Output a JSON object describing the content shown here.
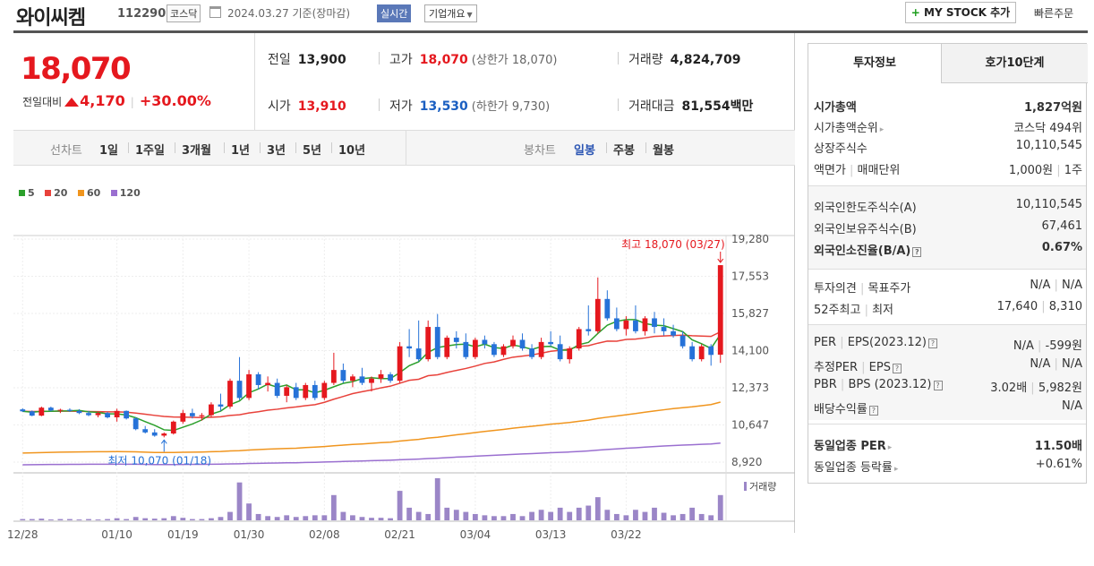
{
  "header": {
    "name": "와이씨켐",
    "code": "112290",
    "market": "코스닥",
    "date": "2024.03.27  기준(장마감)",
    "realtime": "실시간",
    "overview": "기업개요",
    "mystock": "MY STOCK 추가",
    "quick_order": "빠른주문"
  },
  "price": {
    "current": "18,070",
    "change_label": "전일대비",
    "change": "4,170",
    "change_pct": "+30.00%"
  },
  "stats": {
    "prev_label": "전일",
    "prev": "13,900",
    "high_label": "고가",
    "high": "18,070",
    "upper_limit": "(상한가 18,070)",
    "volume_label": "거래량",
    "volume": "4,824,709",
    "open_label": "시가",
    "open": "13,910",
    "low_label": "저가",
    "low": "13,530",
    "lower_limit": "(하한가 9,730)",
    "amount_label": "거래대금",
    "amount": "81,554",
    "amount_unit": "백만"
  },
  "line_tabs": {
    "label": "선차트",
    "items": [
      "1일",
      "1주일",
      "3개월",
      "1년",
      "3년",
      "5년",
      "10년"
    ]
  },
  "candle_tabs": {
    "label": "봉차트",
    "items": [
      "일봉",
      "주봉",
      "월봉"
    ],
    "selected": 0
  },
  "chart_data": {
    "type": "candlestick",
    "ma_legend": [
      {
        "name": "5",
        "color": "#2ca02c"
      },
      {
        "name": "20",
        "color": "#e8423b"
      },
      {
        "name": "60",
        "color": "#f0951e"
      },
      {
        "name": "120",
        "color": "#9a6fd0"
      }
    ],
    "y_ticks": [
      "19,280",
      "17,553",
      "15,827",
      "14,100",
      "12,373",
      "10,647",
      "8,920"
    ],
    "ylim": [
      8920,
      19280
    ],
    "x_labels": [
      "12/28",
      "01/10",
      "01/19",
      "01/30",
      "02/08",
      "02/21",
      "03/04",
      "03/13",
      "03/22"
    ],
    "max_label": "최고 18,070 (03/27)",
    "min_label": "최저 10,070 (01/18)",
    "volume_label": "거래량",
    "candles": [
      [
        11370,
        11420,
        11250,
        11280
      ],
      [
        11280,
        11320,
        11050,
        11080
      ],
      [
        11080,
        11500,
        11050,
        11450
      ],
      [
        11450,
        11500,
        11280,
        11320
      ],
      [
        11320,
        11400,
        11200,
        11350
      ],
      [
        11350,
        11420,
        11250,
        11300
      ],
      [
        11300,
        11380,
        11150,
        11200
      ],
      [
        11200,
        11300,
        11050,
        11100
      ],
      [
        11100,
        11250,
        11000,
        11200
      ],
      [
        11200,
        11250,
        10950,
        11000
      ],
      [
        11000,
        11400,
        10800,
        11300
      ],
      [
        11300,
        11320,
        10900,
        10950
      ],
      [
        10950,
        11000,
        10400,
        10450
      ],
      [
        10450,
        10600,
        10250,
        10300
      ],
      [
        10300,
        10450,
        10100,
        10150
      ],
      [
        10150,
        10300,
        10070,
        10250
      ],
      [
        10250,
        10850,
        10200,
        10800
      ],
      [
        10800,
        11350,
        10700,
        11200
      ],
      [
        11200,
        11400,
        10950,
        11050
      ],
      [
        11050,
        11200,
        10850,
        11100
      ],
      [
        11100,
        11700,
        11000,
        11600
      ],
      [
        11600,
        12100,
        11300,
        11500
      ],
      [
        11500,
        12800,
        11400,
        12700
      ],
      [
        12700,
        13800,
        11800,
        11900
      ],
      [
        11900,
        13200,
        11800,
        13000
      ],
      [
        13000,
        13100,
        12300,
        12500
      ],
      [
        12500,
        12900,
        12200,
        12600
      ],
      [
        12600,
        12800,
        11900,
        12000
      ],
      [
        12000,
        12500,
        11700,
        12400
      ],
      [
        12400,
        12600,
        11800,
        11900
      ],
      [
        11900,
        12600,
        11800,
        12500
      ],
      [
        12500,
        12700,
        11800,
        11900
      ],
      [
        11900,
        12700,
        11800,
        12600
      ],
      [
        12600,
        14000,
        12500,
        13200
      ],
      [
        13200,
        13500,
        12600,
        12700
      ],
      [
        12700,
        13000,
        12400,
        12900
      ],
      [
        12900,
        13300,
        12500,
        12600
      ],
      [
        12600,
        12900,
        12200,
        12800
      ],
      [
        12800,
        13200,
        12600,
        13000
      ],
      [
        13000,
        13100,
        12600,
        12700
      ],
      [
        12700,
        14500,
        12600,
        14300
      ],
      [
        14300,
        15100,
        13800,
        14200
      ],
      [
        14200,
        15500,
        13600,
        13700
      ],
      [
        13700,
        15500,
        13600,
        15200
      ],
      [
        15200,
        15800,
        13700,
        13800
      ],
      [
        13800,
        14800,
        13700,
        14700
      ],
      [
        14700,
        15000,
        14200,
        14500
      ],
      [
        14500,
        14900,
        13700,
        13800
      ],
      [
        13800,
        14700,
        13700,
        14600
      ],
      [
        14600,
        14800,
        14200,
        14400
      ],
      [
        14400,
        14500,
        13800,
        13900
      ],
      [
        13900,
        14400,
        13800,
        14300
      ],
      [
        14300,
        14800,
        14200,
        14600
      ],
      [
        14600,
        14900,
        14100,
        14200
      ],
      [
        14200,
        14400,
        13700,
        13800
      ],
      [
        13800,
        14700,
        13700,
        14500
      ],
      [
        14500,
        15000,
        14300,
        14400
      ],
      [
        14400,
        14800,
        13600,
        13700
      ],
      [
        13700,
        14300,
        13500,
        14200
      ],
      [
        14200,
        15200,
        14100,
        15100
      ],
      [
        15100,
        16200,
        14800,
        15000
      ],
      [
        15000,
        17500,
        14900,
        16500
      ],
      [
        16500,
        16900,
        15500,
        15600
      ],
      [
        15600,
        16100,
        15000,
        15100
      ],
      [
        15100,
        15700,
        14800,
        15500
      ],
      [
        15500,
        16200,
        14900,
        15000
      ],
      [
        15000,
        15700,
        14800,
        15600
      ],
      [
        15600,
        15900,
        14900,
        15200
      ],
      [
        15200,
        15600,
        14800,
        15000
      ],
      [
        15000,
        15300,
        14700,
        14800
      ],
      [
        14800,
        15000,
        14200,
        14300
      ],
      [
        14300,
        14500,
        13600,
        13700
      ],
      [
        13700,
        14400,
        13600,
        14300
      ],
      [
        14300,
        14400,
        13400,
        13900
      ],
      [
        13910,
        18070,
        13530,
        18070
      ]
    ],
    "volumes": [
      0.03,
      0.03,
      0.04,
      0.02,
      0.03,
      0.03,
      0.02,
      0.03,
      0.02,
      0.03,
      0.05,
      0.03,
      0.08,
      0.05,
      0.04,
      0.05,
      0.1,
      0.06,
      0.03,
      0.03,
      0.05,
      0.08,
      0.2,
      0.9,
      0.4,
      0.15,
      0.1,
      0.08,
      0.12,
      0.08,
      0.1,
      0.12,
      0.12,
      0.6,
      0.2,
      0.12,
      0.08,
      0.06,
      0.06,
      0.05,
      0.7,
      0.3,
      0.2,
      0.15,
      1.0,
      0.3,
      0.25,
      0.2,
      0.15,
      0.12,
      0.1,
      0.1,
      0.15,
      0.1,
      0.2,
      0.25,
      0.2,
      0.3,
      0.2,
      0.3,
      0.35,
      0.55,
      0.25,
      0.15,
      0.12,
      0.25,
      0.2,
      0.3,
      0.18,
      0.12,
      0.15,
      0.3,
      0.15,
      0.12,
      0.6
    ]
  },
  "side": {
    "tab_info": "투자정보",
    "tab_quote": "호가10단계",
    "market_cap_label": "시가총액",
    "market_cap": "1,827억원",
    "cap_rank_label": "시가총액순위",
    "cap_rank": "코스닥 494위",
    "shares_label": "상장주식수",
    "shares": "10,110,545",
    "par_label": "액면가",
    "trade_unit_label": "매매단위",
    "par": "1,000원",
    "trade_unit": "1주",
    "foreign_limit_label": "외국인한도주식수(A)",
    "foreign_limit": "10,110,545",
    "foreign_hold_label": "외국인보유주식수(B)",
    "foreign_hold": "67,461",
    "foreign_ratio_label": "외국인소진율(B/A)",
    "foreign_ratio": "0.67%",
    "opinion_label": "투자의견",
    "target_label": "목표주가",
    "opinion": "N/A",
    "target": "N/A",
    "w52_high_label": "52주최고",
    "w52_low_label": "최저",
    "w52_high": "17,640",
    "w52_low": "8,310",
    "per_label": "PER",
    "eps_label": "EPS(2023.12)",
    "per": "N/A",
    "eps": "-599원",
    "est_per_label": "추정PER",
    "est_eps_label": "EPS",
    "est_per": "N/A",
    "est_eps": "N/A",
    "pbr_label": "PBR",
    "bps_label": "BPS (2023.12)",
    "pbr": "3.02배",
    "bps": "5,982원",
    "div_label": "배당수익률",
    "div": "N/A",
    "ind_per_label": "동일업종 PER",
    "ind_per": "11.50배",
    "ind_rate_label": "동일업종 등락률",
    "ind_rate": "+0.61%"
  }
}
